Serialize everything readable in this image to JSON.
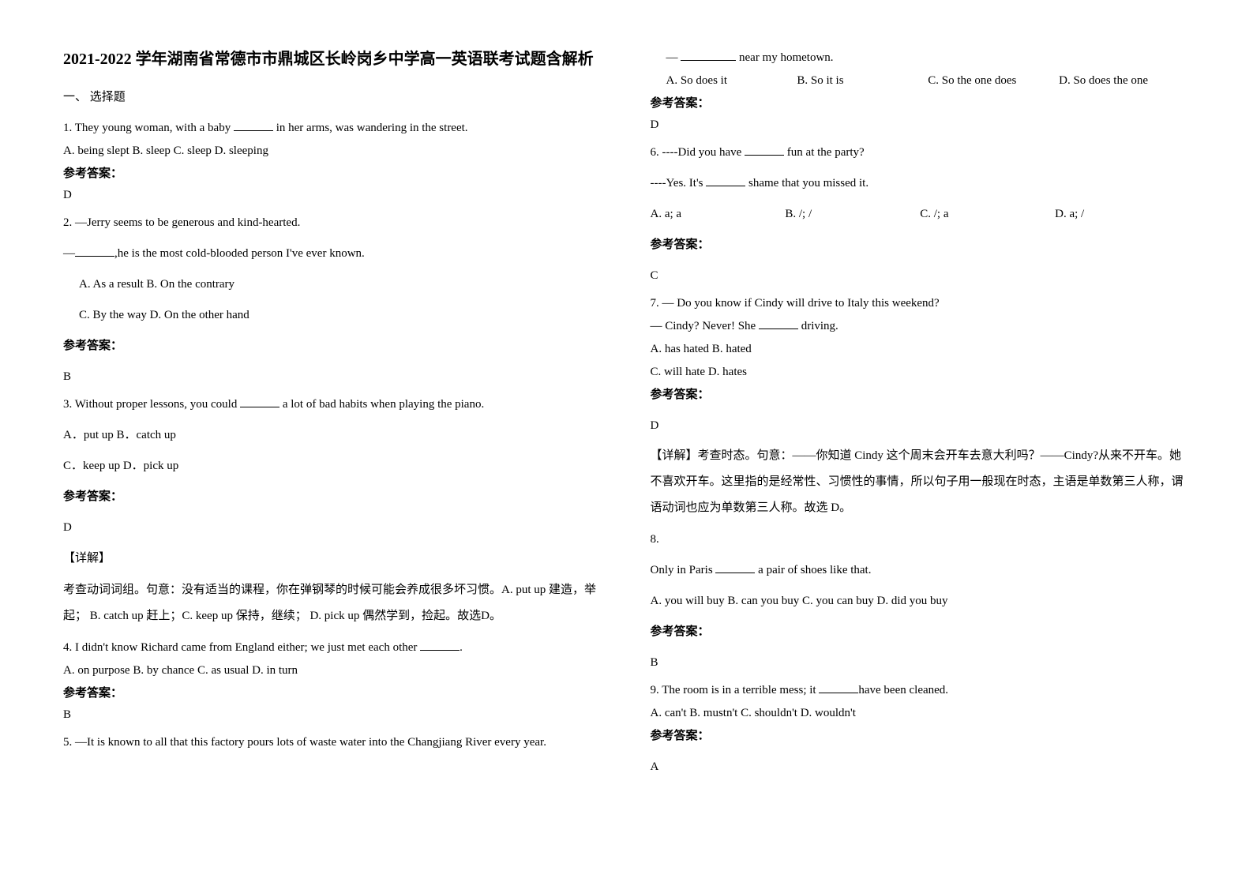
{
  "title": "2021-2022 学年湖南省常德市市鼎城区长岭岗乡中学高一英语联考试题含解析",
  "section_header": "一、 选择题",
  "answer_label": "参考答案：",
  "explanation_label": "【详解】",
  "questions": {
    "q1": {
      "text": "1. They young woman, with a baby ",
      "text_after": " in her arms, was wandering in the street.",
      "options": " A. being slept    B. sleep    C. sleep     D. sleeping",
      "answer": "D"
    },
    "q2": {
      "text": "2. —Jerry seems to be generous and kind-hearted.",
      "text2_pre": "—",
      "text2_post": ",he is the most cold-blooded person I've ever known.",
      "options_a": "A. As a result       B. On the contrary",
      "options_b": "C. By the way     D. On the other hand",
      "answer": "B"
    },
    "q3": {
      "text": "3. Without proper lessons, you could ",
      "text_after": " a lot of bad habits when playing the piano.",
      "options_a": "A．put up   B．catch up",
      "options_b": "C．keep up   D．pick up",
      "answer": "D",
      "explanation": "考查动词词组。句意：没有适当的课程，你在弹钢琴的时候可能会养成很多坏习惯。A. put up 建造，举起；            B. catch up 赶上；C. keep up 保持，继续；            D. pick up 偶然学到，捡起。故选D。"
    },
    "q4": {
      "text": "4. I didn't know Richard came from England either; we just met each other ",
      "text_after": ".",
      "options": "A. on purpose          B. by chance   C. as usual     D. in turn",
      "answer": "B"
    },
    "q5": {
      "text": "5. —It is known to all that this factory pours lots of waste water into the Changjiang River every year.",
      "text2_pre": "— ",
      "text2_post": " near my hometown.",
      "opt_a": "A. So does it",
      "opt_b": "B. So it is",
      "opt_c": "C. So the one does",
      "opt_d": "D. So does the one",
      "answer": "D"
    },
    "q6": {
      "text": "6. ----Did you have ",
      "text_after": " fun at the party?",
      "text2": "----Yes. It's ",
      "text2_after": " shame that you missed it.",
      "opt_a": "A. a; a",
      "opt_b": "B. /; /",
      "opt_c": "C. /; a",
      "opt_d": "D. a; /",
      "answer": "C"
    },
    "q7": {
      "text": "7. — Do you know if Cindy will drive to Italy this weekend?",
      "text2": "— Cindy? Never! She ",
      "text2_after": " driving.",
      "options_a": "A. has hated    B. hated",
      "options_b": "C. will hate      D. hates",
      "answer": "D",
      "explanation": "【详解】考查时态。句意：——你知道 Cindy 这个周末会开车去意大利吗？——Cindy?从来不开车。她不喜欢开车。这里指的是经常性、习惯性的事情，所以句子用一般现在时态，主语是单数第三人称，谓语动词也应为单数第三人称。故选 D。"
    },
    "q8": {
      "text": "8.",
      "text2": "Only in Paris ",
      "text2_after": " a  pair of shoes like that.",
      "options": "A. you will buy    B. can you buy    C. you can buy    D. did you buy",
      "answer": "B"
    },
    "q9": {
      "text": "9. The room is in a terrible mess; it ",
      "text_after": "have been cleaned.",
      "options": "A. can't       B. mustn't   C. shouldn't  D. wouldn't",
      "answer": "A"
    }
  }
}
